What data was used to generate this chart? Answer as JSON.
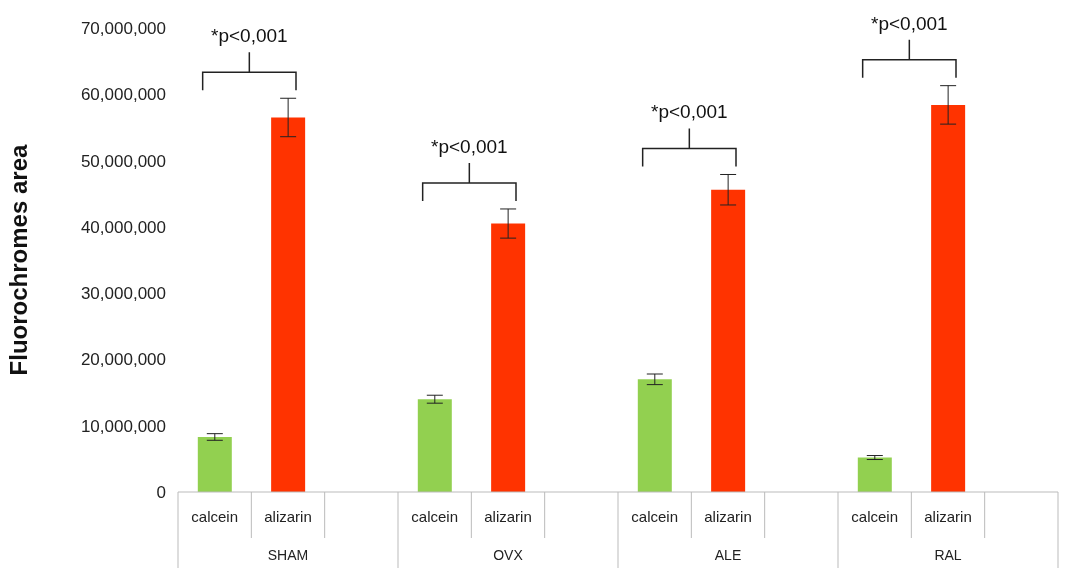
{
  "chart_data": {
    "type": "bar",
    "ylabel": "Fluorochromes area",
    "categories": [
      "calcein",
      "alizarin",
      null,
      "calcein",
      "alizarin",
      null,
      "calcein",
      "alizarin",
      null,
      "calcein",
      "alizarin",
      null
    ],
    "values": [
      8300000,
      56500000,
      null,
      14000000,
      40500000,
      null,
      17000000,
      45600000,
      null,
      5200000,
      58400000,
      null
    ],
    "errors": [
      500000,
      2900000,
      null,
      600000,
      2200000,
      null,
      800000,
      2300000,
      null,
      300000,
      2900000,
      null
    ],
    "colors": [
      "#92d050",
      "#ff3300",
      null,
      "#92d050",
      "#ff3300",
      null,
      "#92d050",
      "#ff3300",
      null,
      "#92d050",
      "#ff3300",
      null
    ],
    "ylim": [
      0,
      70000000
    ],
    "yticks": [
      {
        "value": 0,
        "label": "0"
      },
      {
        "value": 10000000,
        "label": "10,000,000"
      },
      {
        "value": 20000000,
        "label": "20,000,000"
      },
      {
        "value": 30000000,
        "label": "30,000,000"
      },
      {
        "value": 40000000,
        "label": "40,000,000"
      },
      {
        "value": 50000000,
        "label": "50,000,000"
      },
      {
        "value": 60000000,
        "label": "60,000,000"
      },
      {
        "value": 70000000,
        "label": "70,000,000"
      }
    ],
    "annotations": [
      "SHAM",
      "OVX",
      "ALE",
      "RAL",
      "*p<0,001",
      "*p<0,001",
      "*p<0,001",
      "*p<0,001"
    ],
    "grid": false,
    "legend": false
  }
}
